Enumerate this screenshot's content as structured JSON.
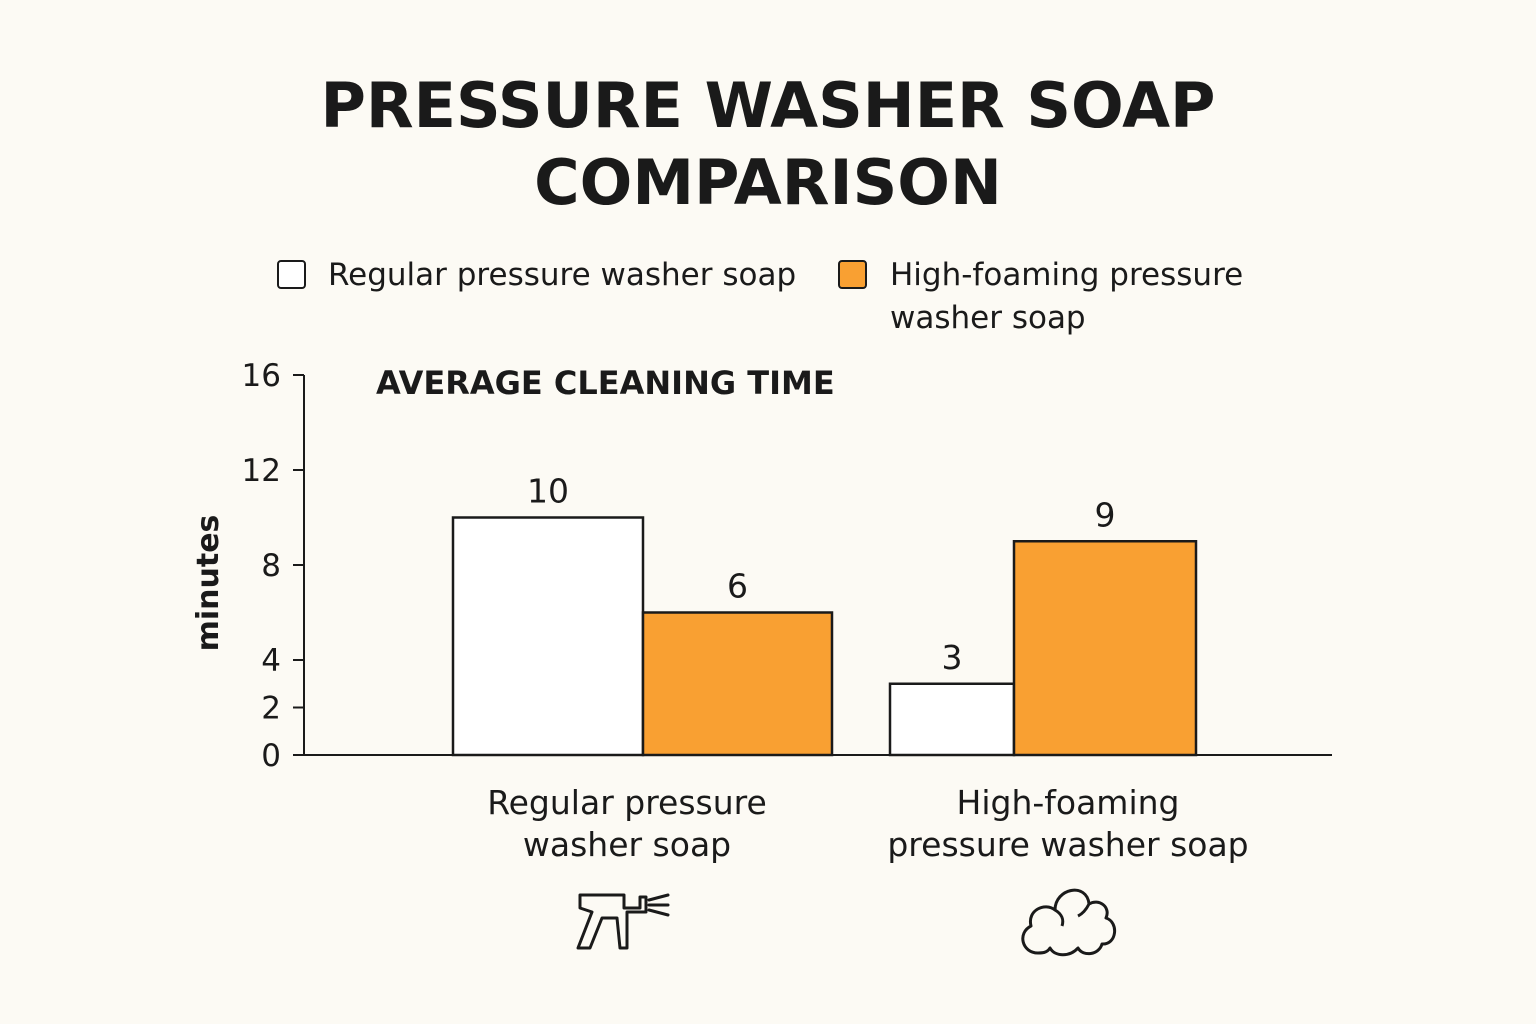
{
  "colors": {
    "background": "#fcfaf4",
    "regular": "#ffffff",
    "high_foaming": "#f9a032",
    "stroke": "#1a1a1a"
  },
  "icons": {
    "regular": "spray-gun-icon",
    "high_foaming": "foam-cloud-icon"
  },
  "chart_data": {
    "type": "bar",
    "title": "PRESSURE WASHER SOAP COMPARISON",
    "title_lines": [
      "PRESSURE WASHER SOAP",
      "COMPARISON"
    ],
    "subtitle": "AVERAGE CLEANING TIME",
    "ylabel": "minutes",
    "xlabel": "",
    "ylim": [
      0,
      16
    ],
    "yticks": [
      0,
      2,
      4,
      8,
      12,
      16
    ],
    "grid": false,
    "legend_position": "top",
    "legend": [
      {
        "label": "Regular pressure washer soap",
        "lines": [
          "Regular pressure washer soap"
        ],
        "color": "#ffffff"
      },
      {
        "label": "High-foaming pressure washer soap",
        "lines": [
          "High-foaming pressure",
          "washer soap"
        ],
        "color": "#f9a032"
      }
    ],
    "categories": [
      "Regular pressure washer soap",
      "High-foaming pressure washer soap"
    ],
    "category_lines": [
      [
        "Regular pressure",
        "washer soap"
      ],
      [
        "High-foaming",
        "pressure washer soap"
      ]
    ],
    "series": [
      {
        "name": "Regular pressure washer soap",
        "values": [
          10,
          3
        ],
        "labels": [
          "10",
          "3"
        ]
      },
      {
        "name": "High-foaming pressure washer soap",
        "values": [
          6,
          9
        ],
        "labels": [
          "6",
          "9"
        ]
      }
    ]
  }
}
